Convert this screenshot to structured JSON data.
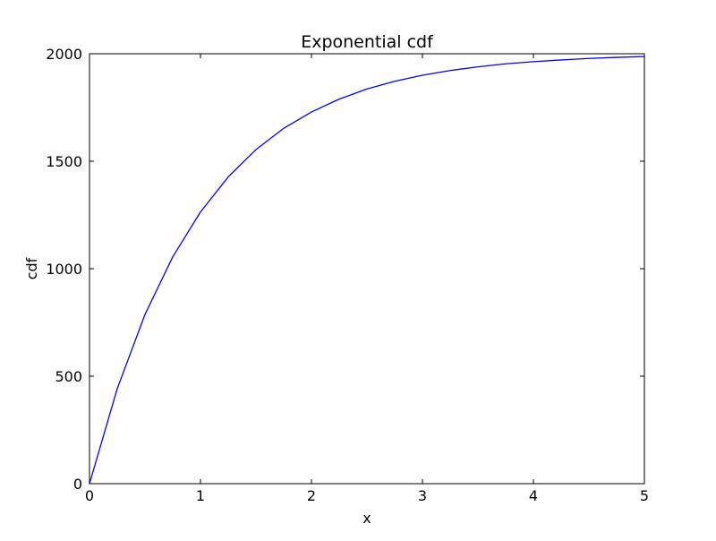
{
  "chart_data": {
    "type": "line",
    "title": "Exponential cdf",
    "xlabel": "x",
    "ylabel": "cdf",
    "xlim": [
      0,
      5
    ],
    "ylim": [
      0,
      2000
    ],
    "xticks": [
      0,
      1,
      2,
      3,
      4,
      5
    ],
    "yticks": [
      0,
      500,
      1000,
      1500,
      2000
    ],
    "xtick_labels": [
      "0",
      "1",
      "2",
      "3",
      "4",
      "5"
    ],
    "ytick_labels": [
      "0",
      "500",
      "1000",
      "1500",
      "2000"
    ],
    "grid": false,
    "series": [
      {
        "color": "#0000ff",
        "x": [
          0,
          0.25,
          0.5,
          0.75,
          1.0,
          1.25,
          1.5,
          1.75,
          2.0,
          2.25,
          2.5,
          2.75,
          3.0,
          3.25,
          3.5,
          3.75,
          4.0,
          4.25,
          4.5,
          4.75,
          5.0
        ],
        "y": [
          0,
          442,
          787,
          1055,
          1264,
          1427,
          1554,
          1653,
          1729,
          1789,
          1836,
          1872,
          1900,
          1922,
          1939,
          1953,
          1963,
          1971,
          1978,
          1983,
          1987
        ]
      }
    ]
  }
}
